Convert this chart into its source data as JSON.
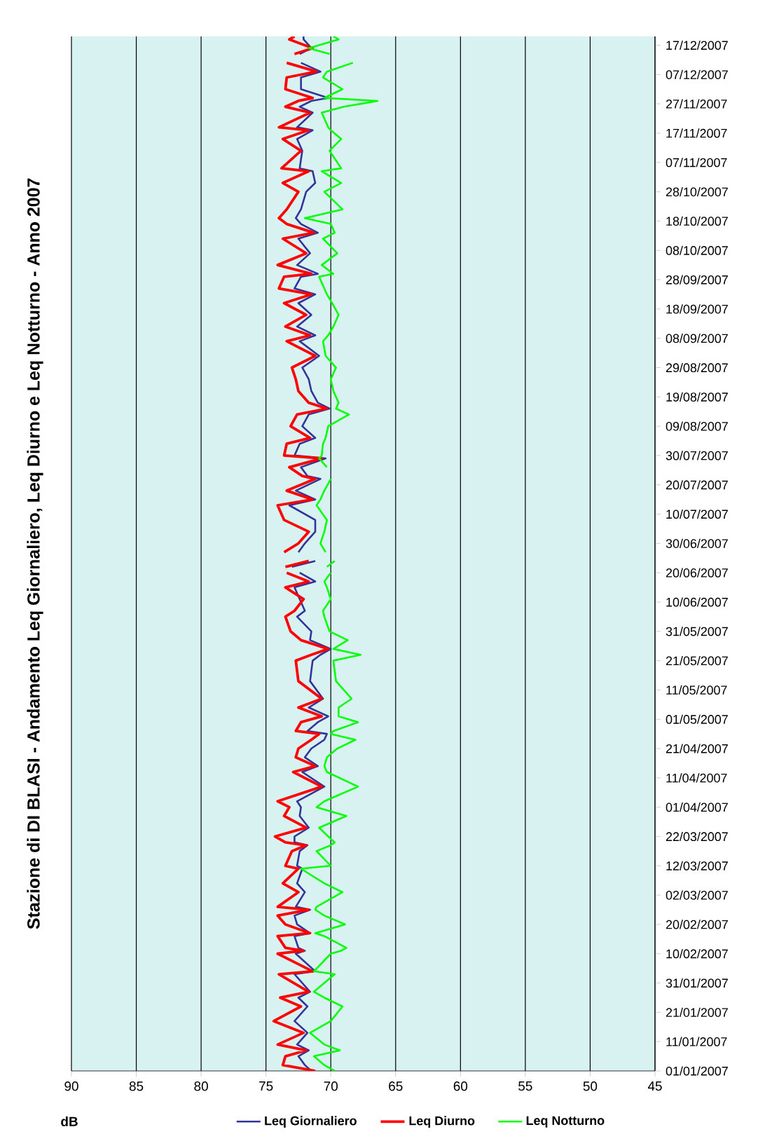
{
  "chart_data": {
    "type": "line",
    "title": "Stazione di DI BLASI - Andamento Leq Giornaliero, Leq Diurno e Leq Notturno - Anno 2007",
    "ylabel": "dB",
    "x": [
      "2007-01-01",
      "2007-01-03",
      "2007-01-06",
      "2007-01-08",
      "2007-01-10",
      "2007-01-14",
      "2007-01-18",
      "2007-01-23",
      "2007-01-26",
      "2007-01-28",
      "2007-02-03",
      "2007-02-04",
      "2007-02-10",
      "2007-02-11",
      "2007-02-12",
      "2007-02-16",
      "2007-02-17",
      "2007-02-20",
      "2007-02-23",
      "2007-02-25",
      "2007-02-26",
      "2007-03-03",
      "2007-03-06",
      "2007-03-11",
      "2007-03-12",
      "2007-03-17",
      "2007-03-19",
      "2007-03-20",
      "2007-03-22",
      "2007-03-25",
      "2007-03-29",
      "2007-04-01",
      "2007-04-03",
      "2007-04-08",
      "2007-04-13",
      "2007-04-15",
      "2007-04-18",
      "2007-04-21",
      "2007-04-24",
      "2007-04-26",
      "2007-04-27",
      "2007-04-30",
      "2007-05-02",
      "2007-05-05",
      "2007-05-08",
      "2007-05-14",
      "2007-05-21",
      "2007-05-23",
      "2007-05-25",
      "2007-05-28",
      "2007-05-31",
      "2007-06-05",
      "2007-06-07",
      "2007-06-11",
      "2007-06-15",
      "2007-06-17",
      "2007-06-20",
      "2007-06-21",
      "2007-06-22",
      "2007-06-24",
      "2007-06-25",
      "2007-06-27",
      "2007-06-30",
      "2007-07-04",
      "2007-07-08",
      "2007-07-13",
      "2007-07-15",
      "2007-07-18",
      "2007-07-22",
      "2007-07-23",
      "2007-07-26",
      "2007-07-29",
      "2007-07-30",
      "2007-08-03",
      "2007-08-05",
      "2007-08-09",
      "2007-08-13",
      "2007-08-15",
      "2007-08-17",
      "2007-08-21",
      "2007-08-25",
      "2007-08-29",
      "2007-09-02",
      "2007-09-07",
      "2007-09-09",
      "2007-09-12",
      "2007-09-16",
      "2007-09-20",
      "2007-09-23",
      "2007-09-25",
      "2007-09-29",
      "2007-09-30",
      "2007-10-03",
      "2007-10-07",
      "2007-10-12",
      "2007-10-14",
      "2007-10-17",
      "2007-10-19",
      "2007-10-22",
      "2007-10-28",
      "2007-10-31",
      "2007-11-04",
      "2007-11-05",
      "2007-11-11",
      "2007-11-15",
      "2007-11-18",
      "2007-11-19",
      "2007-11-24",
      "2007-11-26",
      "2007-11-28",
      "2007-11-29",
      "2007-12-02",
      "2007-12-06",
      "2007-12-08",
      "2007-12-11",
      "2007-12-12",
      "2007-12-14",
      "2007-12-16",
      "2007-12-19",
      "2007-12-20"
    ],
    "series": [
      {
        "name": "Leq Giornaliero",
        "color": "#333399",
        "values": [
          71.5,
          72.0,
          72.5,
          71.7,
          72.6,
          71.8,
          72.8,
          71.8,
          72.5,
          71.6,
          72.8,
          71.2,
          72.7,
          72.0,
          72.5,
          72.8,
          71.6,
          72.6,
          72.8,
          71.6,
          72.7,
          72.0,
          72.6,
          72.2,
          72.6,
          72.4,
          71.8,
          72.8,
          72.8,
          71.7,
          72.4,
          72.3,
          72.6,
          70.5,
          72.2,
          71.0,
          72.0,
          71.5,
          70.5,
          70.3,
          71.8,
          71.0,
          70.2,
          71.7,
          70.6,
          71.6,
          71.4,
          70.8,
          70.0,
          71.6,
          71.5,
          72.6,
          72.0,
          72.4,
          72.8,
          71.2,
          72.4,
          null,
          73.0,
          71.2,
          null,
          72.5,
          72.0,
          71.2,
          71.2,
          73.2,
          71.2,
          72.7,
          70.8,
          71.8,
          72.3,
          70.4,
          72.8,
          72.4,
          71.2,
          72.2,
          71.7,
          70.1,
          71.0,
          71.5,
          71.7,
          72.2,
          70.9,
          72.4,
          71.2,
          72.6,
          71.5,
          72.5,
          71.2,
          72.8,
          72.3,
          71.0,
          72.6,
          71.6,
          72.5,
          71.0,
          72.3,
          72.7,
          72.3,
          71.9,
          71.2,
          71.4,
          72.4,
          72.2,
          72.6,
          71.4,
          72.6,
          71.4,
          72.4,
          71.5,
          70.2,
          72.3,
          72.3,
          70.8,
          72.3,
          null,
          72.4,
          71.5,
          72.1,
          72.1
        ]
      },
      {
        "name": "Leq Diurno",
        "color": "#ff0000",
        "values": [
          71.2,
          73.7,
          73.5,
          71.9,
          74.1,
          72.1,
          74.4,
          72.3,
          73.9,
          71.7,
          74.0,
          71.4,
          74.1,
          72.1,
          73.5,
          74.1,
          71.6,
          73.5,
          74.1,
          71.7,
          74.1,
          72.5,
          73.7,
          72.5,
          73.5,
          73.0,
          71.9,
          73.5,
          74.3,
          71.9,
          73.6,
          73.2,
          74.1,
          70.7,
          72.9,
          71.2,
          72.7,
          72.5,
          71.5,
          70.9,
          72.7,
          72.3,
          70.7,
          72.5,
          70.7,
          72.5,
          72.7,
          71.5,
          70.2,
          72.3,
          73.1,
          73.5,
          72.8,
          72.1,
          73.5,
          71.7,
          73.4,
          null,
          73.5,
          71.7,
          null,
          73.6,
          72.5,
          71.7,
          73.6,
          74.1,
          71.4,
          73.4,
          71.2,
          72.2,
          73.2,
          70.7,
          73.6,
          73.4,
          71.6,
          73.1,
          72.6,
          70.3,
          71.7,
          72.5,
          72.7,
          73.0,
          71.2,
          73.4,
          71.6,
          73.5,
          71.9,
          73.6,
          71.5,
          74.0,
          73.6,
          71.5,
          74.1,
          71.9,
          73.7,
          71.3,
          73.4,
          74.0,
          73.4,
          72.5,
          73.7,
          71.7,
          73.8,
          72.3,
          73.7,
          71.7,
          74.0,
          71.6,
          73.5,
          72.5,
          71.4,
          73.5,
          73.4,
          71.1,
          73.4,
          null,
          72.8,
          71.4,
          73.2,
          72.8
        ]
      },
      {
        "name": "Leq Notturno",
        "color": "#00ff00",
        "values": [
          69.7,
          70.5,
          71.3,
          69.3,
          70.5,
          71.6,
          70.0,
          69.1,
          70.5,
          71.3,
          69.7,
          71.3,
          70.0,
          69.2,
          68.8,
          70.5,
          71.2,
          68.9,
          70.5,
          71.2,
          71.1,
          69.1,
          70.5,
          72.3,
          70.0,
          71.1,
          70.0,
          69.7,
          70.2,
          70.9,
          68.8,
          71.1,
          70.5,
          67.9,
          70.3,
          70.5,
          70.3,
          69.5,
          68.1,
          70.0,
          69.8,
          67.9,
          69.4,
          69.4,
          68.4,
          69.6,
          69.8,
          67.7,
          69.8,
          68.7,
          70.1,
          70.5,
          70.6,
          70.0,
          70.3,
          70.5,
          70.0,
          null,
          70.3,
          69.7,
          null,
          70.4,
          70.8,
          70.5,
          70.3,
          71.1,
          70.8,
          70.5,
          70.0,
          null,
          70.3,
          70.9,
          70.7,
          70.6,
          70.4,
          70.2,
          68.6,
          69.6,
          69.4,
          69.8,
          70.0,
          69.6,
          70.4,
          70.6,
          70.2,
          69.8,
          69.4,
          69.9,
          70.3,
          70.5,
          70.9,
          69.8,
          70.7,
          69.5,
          70.6,
          69.7,
          70.0,
          72.0,
          69.1,
          70.5,
          69.2,
          70.7,
          69.2,
          70.1,
          69.2,
          70.0,
          70.2,
          70.7,
          69.0,
          66.4,
          70.5,
          69.1,
          70.6,
          70.3,
          68.3,
          null,
          70.1,
          71.7,
          69.4,
          69.8
        ]
      }
    ],
    "orientation": "horizontal",
    "ylim": [
      "2007-01-01",
      "2007-12-20"
    ],
    "yticks": [
      {
        "value": "2007-01-01",
        "label": "01/01/2007"
      },
      {
        "value": "2007-01-11",
        "label": "11/01/2007"
      },
      {
        "value": "2007-01-21",
        "label": "21/01/2007"
      },
      {
        "value": "2007-01-31",
        "label": "31/01/2007"
      },
      {
        "value": "2007-02-10",
        "label": "10/02/2007"
      },
      {
        "value": "2007-02-20",
        "label": "20/02/2007"
      },
      {
        "value": "2007-03-02",
        "label": "02/03/2007"
      },
      {
        "value": "2007-03-12",
        "label": "12/03/2007"
      },
      {
        "value": "2007-03-22",
        "label": "22/03/2007"
      },
      {
        "value": "2007-04-01",
        "label": "01/04/2007"
      },
      {
        "value": "2007-04-11",
        "label": "11/04/2007"
      },
      {
        "value": "2007-04-21",
        "label": "21/04/2007"
      },
      {
        "value": "2007-05-01",
        "label": "01/05/2007"
      },
      {
        "value": "2007-05-11",
        "label": "11/05/2007"
      },
      {
        "value": "2007-05-21",
        "label": "21/05/2007"
      },
      {
        "value": "2007-05-31",
        "label": "31/05/2007"
      },
      {
        "value": "2007-06-10",
        "label": "10/06/2007"
      },
      {
        "value": "2007-06-20",
        "label": "20/06/2007"
      },
      {
        "value": "2007-06-30",
        "label": "30/06/2007"
      },
      {
        "value": "2007-07-10",
        "label": "10/07/2007"
      },
      {
        "value": "2007-07-20",
        "label": "20/07/2007"
      },
      {
        "value": "2007-07-30",
        "label": "30/07/2007"
      },
      {
        "value": "2007-08-09",
        "label": "09/08/2007"
      },
      {
        "value": "2007-08-19",
        "label": "19/08/2007"
      },
      {
        "value": "2007-08-29",
        "label": "29/08/2007"
      },
      {
        "value": "2007-09-08",
        "label": "08/09/2007"
      },
      {
        "value": "2007-09-18",
        "label": "18/09/2007"
      },
      {
        "value": "2007-09-28",
        "label": "28/09/2007"
      },
      {
        "value": "2007-10-08",
        "label": "08/10/2007"
      },
      {
        "value": "2007-10-18",
        "label": "18/10/2007"
      },
      {
        "value": "2007-10-28",
        "label": "28/10/2007"
      },
      {
        "value": "2007-11-07",
        "label": "07/11/2007"
      },
      {
        "value": "2007-11-17",
        "label": "17/11/2007"
      },
      {
        "value": "2007-11-27",
        "label": "27/11/2007"
      },
      {
        "value": "2007-12-07",
        "label": "07/12/2007"
      },
      {
        "value": "2007-12-17",
        "label": "17/12/2007"
      }
    ],
    "xlim": [
      90,
      45
    ],
    "xticks": [
      90,
      85,
      80,
      75,
      70,
      65,
      60,
      55,
      50,
      45
    ],
    "grid": "x",
    "legend": "bottom"
  }
}
